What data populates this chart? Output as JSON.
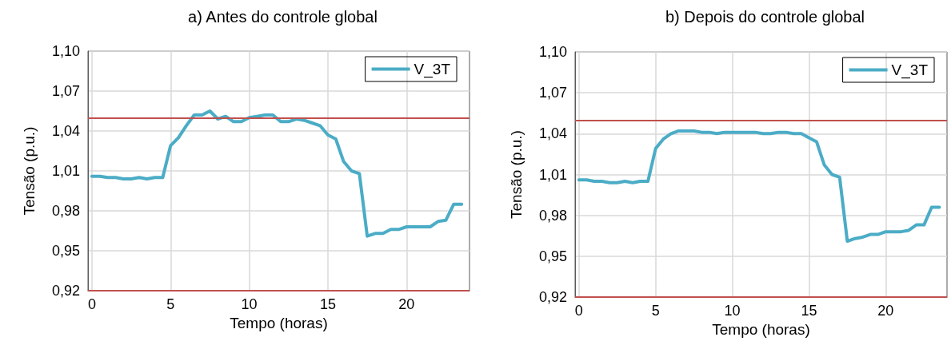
{
  "chart_data": [
    {
      "type": "line",
      "title": "a) Antes do controle global",
      "xlabel": "Tempo (horas)",
      "ylabel": "Tensão (p.u.)",
      "x": [
        0,
        0.5,
        1,
        1.5,
        2,
        2.5,
        3,
        3.5,
        4,
        4.5,
        5,
        5.5,
        6,
        6.5,
        7,
        7.5,
        8,
        8.5,
        9,
        9.5,
        10,
        10.5,
        11,
        11.5,
        12,
        12.5,
        13,
        13.5,
        14,
        14.5,
        15,
        15.5,
        16,
        16.5,
        17,
        17.5,
        18,
        18.5,
        19,
        19.5,
        20,
        20.5,
        21,
        21.5,
        22,
        22.5,
        23,
        23.5
      ],
      "series": [
        {
          "name": "V_3T",
          "color": "#4bacc6",
          "values": [
            1.006,
            1.006,
            1.005,
            1.005,
            1.004,
            1.004,
            1.005,
            1.004,
            1.005,
            1.005,
            1.029,
            1.035,
            1.044,
            1.052,
            1.052,
            1.055,
            1.049,
            1.051,
            1.047,
            1.047,
            1.05,
            1.051,
            1.052,
            1.052,
            1.047,
            1.047,
            1.049,
            1.048,
            1.046,
            1.044,
            1.037,
            1.034,
            1.017,
            1.01,
            1.008,
            0.961,
            0.963,
            0.963,
            0.966,
            0.966,
            0.968,
            0.968,
            0.968,
            0.968,
            0.972,
            0.973,
            0.985,
            0.985
          ]
        }
      ],
      "xlim": [
        -0.25,
        24
      ],
      "xticks": [
        0,
        5,
        10,
        15,
        20
      ],
      "ylim": [
        0.92,
        1.1
      ],
      "yticks": [
        {
          "value": 0.92,
          "label": "0,92"
        },
        {
          "value": 0.95,
          "label": "0,95"
        },
        {
          "value": 0.98,
          "label": "0,98"
        },
        {
          "value": 1.01,
          "label": "1,01"
        },
        {
          "value": 1.04,
          "label": "1,04"
        },
        {
          "value": 1.07,
          "label": "1,07"
        },
        {
          "value": 1.1,
          "label": "1,10"
        }
      ],
      "ref_lines": [
        {
          "axis": "y",
          "value": 1.05,
          "color": "#c0504d"
        },
        {
          "axis": "y",
          "value": 0.92,
          "color": "#c0504d"
        }
      ],
      "grid": true,
      "legend": "top right",
      "marker": "none",
      "line_style": "solid"
    },
    {
      "type": "line",
      "title": "b) Depois do controle global",
      "xlabel": "Tempo (horas)",
      "ylabel": "Tensão (p.u.)",
      "x": [
        0,
        0.5,
        1,
        1.5,
        2,
        2.5,
        3,
        3.5,
        4,
        4.5,
        5,
        5.5,
        6,
        6.5,
        7,
        7.5,
        8,
        8.5,
        9,
        9.5,
        10,
        10.5,
        11,
        11.5,
        12,
        12.5,
        13,
        13.5,
        14,
        14.5,
        15,
        15.5,
        16,
        16.5,
        17,
        17.5,
        18,
        18.5,
        19,
        19.5,
        20,
        20.5,
        21,
        21.5,
        22,
        22.5,
        23,
        23.5
      ],
      "series": [
        {
          "name": "V_3T",
          "color": "#4bacc6",
          "values": [
            1.006,
            1.006,
            1.005,
            1.005,
            1.004,
            1.004,
            1.005,
            1.004,
            1.005,
            1.005,
            1.029,
            1.036,
            1.04,
            1.042,
            1.042,
            1.042,
            1.041,
            1.041,
            1.04,
            1.041,
            1.041,
            1.041,
            1.041,
            1.041,
            1.04,
            1.04,
            1.041,
            1.041,
            1.04,
            1.04,
            1.037,
            1.034,
            1.017,
            1.01,
            1.008,
            0.961,
            0.963,
            0.964,
            0.966,
            0.966,
            0.968,
            0.968,
            0.968,
            0.969,
            0.973,
            0.973,
            0.986,
            0.986
          ]
        }
      ],
      "xlim": [
        -0.25,
        24
      ],
      "xticks": [
        0,
        5,
        10,
        15,
        20
      ],
      "ylim": [
        0.92,
        1.1
      ],
      "yticks": [
        {
          "value": 0.92,
          "label": "0,92"
        },
        {
          "value": 0.95,
          "label": "0,95"
        },
        {
          "value": 0.98,
          "label": "0,98"
        },
        {
          "value": 1.01,
          "label": "1,01"
        },
        {
          "value": 1.04,
          "label": "1,04"
        },
        {
          "value": 1.07,
          "label": "1,07"
        },
        {
          "value": 1.1,
          "label": "1,10"
        }
      ],
      "ref_lines": [
        {
          "axis": "y",
          "value": 1.05,
          "color": "#c0504d"
        },
        {
          "axis": "y",
          "value": 0.92,
          "color": "#c0504d"
        }
      ],
      "grid": true,
      "legend": "top right",
      "marker": "none",
      "line_style": "solid"
    }
  ]
}
